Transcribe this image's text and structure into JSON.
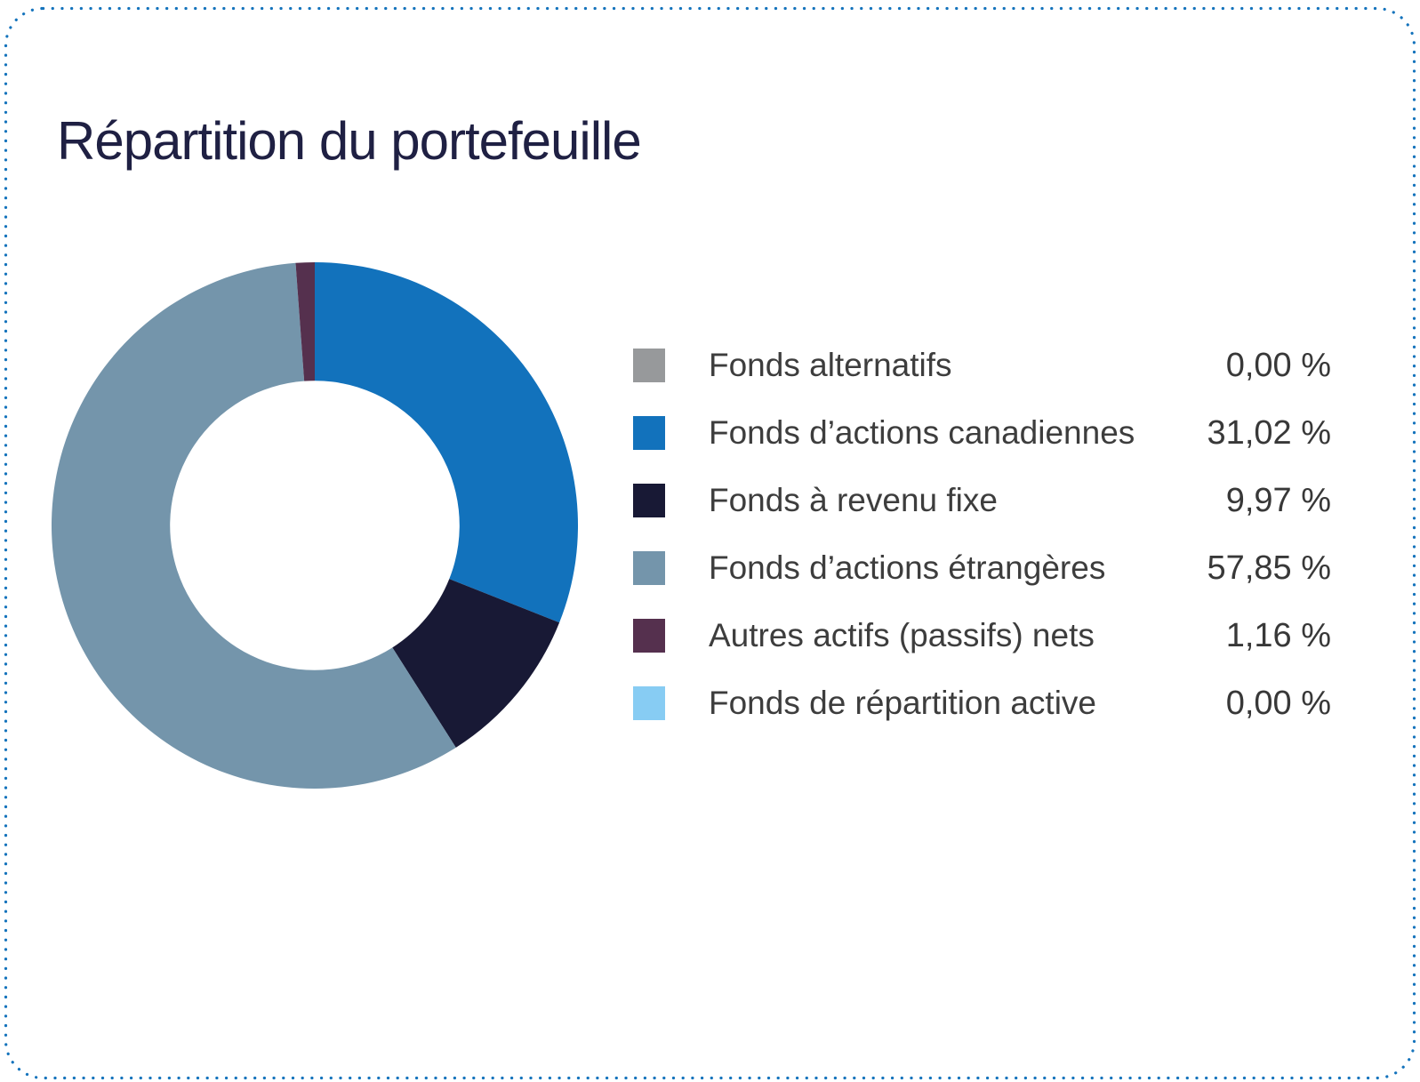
{
  "title": "Répartition du portefeuille",
  "card": {
    "background": "#FFFFFF",
    "border_color": "#1473BC",
    "border_style": "dotted"
  },
  "chart_data": {
    "type": "pie",
    "subtype": "donut",
    "title": "Répartition du portefeuille",
    "legend_position": "right",
    "direction": "clockwise",
    "start_angle_deg": 0,
    "inner_radius_ratio": 0.55,
    "value_unit": "%",
    "series": [
      {
        "name": "Fonds alternatifs",
        "value": 0.0,
        "color": "#97999B"
      },
      {
        "name": "Fonds d’actions canadiennes",
        "value": 31.02,
        "color": "#1272BC"
      },
      {
        "name": "Fonds à revenu fixe",
        "value": 9.97,
        "color": "#181935"
      },
      {
        "name": "Fonds d’actions étrangères",
        "value": 57.85,
        "color": "#7495AB"
      },
      {
        "name": "Autres actifs (passifs) nets",
        "value": 1.16,
        "color": "#55304E"
      },
      {
        "name": "Fonds de répartition active",
        "value": 0.0,
        "color": "#87CCF3"
      }
    ]
  },
  "legend": {
    "items": [
      {
        "label": "Fonds alternatifs",
        "value_label": "0,00 %",
        "color": "#97999B"
      },
      {
        "label": "Fonds d’actions canadiennes",
        "value_label": "31,02 %",
        "color": "#1272BC"
      },
      {
        "label": "Fonds à revenu fixe",
        "value_label": "9,97 %",
        "color": "#181935"
      },
      {
        "label": "Fonds d’actions étrangères",
        "value_label": "57,85 %",
        "color": "#7495AB"
      },
      {
        "label": "Autres actifs (passifs) nets",
        "value_label": "1,16 %",
        "color": "#55304E"
      },
      {
        "label": "Fonds de répartition active",
        "value_label": "0,00 %",
        "color": "#87CCF3"
      }
    ]
  }
}
